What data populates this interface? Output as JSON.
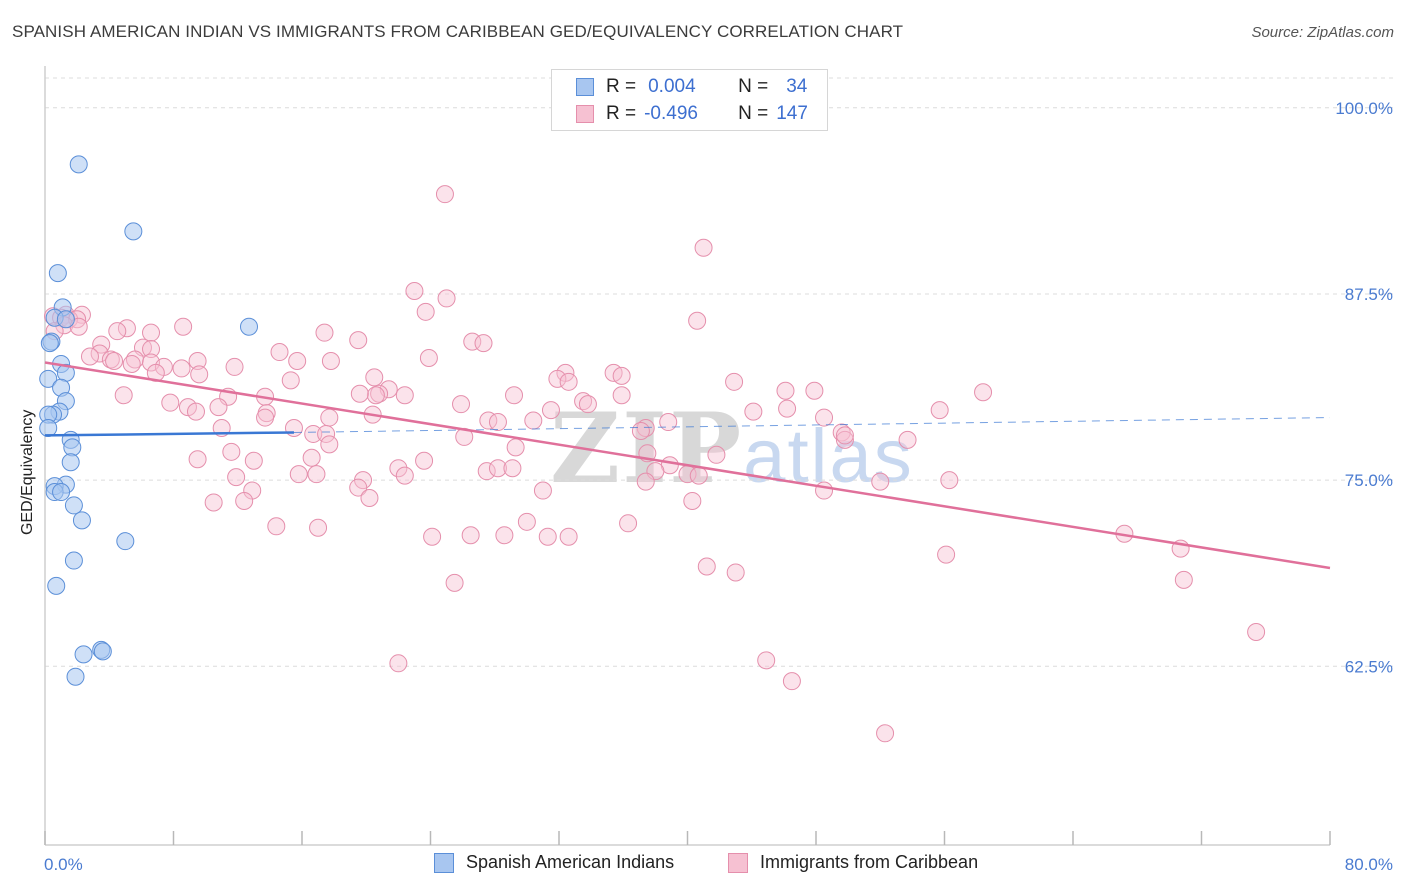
{
  "title": "SPANISH AMERICAN INDIAN VS IMMIGRANTS FROM CARIBBEAN GED/EQUIVALENCY CORRELATION CHART",
  "source": "Source: ZipAtlas.com",
  "watermark": {
    "part1": "ZIP",
    "part2": "atlas"
  },
  "legend": {
    "rows": [
      {
        "r_label": "R =",
        "r_value": "0.004",
        "n_label": "N =",
        "n_value": "34",
        "color": "#a8c6f0",
        "border": "#5b8fd8"
      },
      {
        "r_label": "R =",
        "r_value": "-0.496",
        "n_label": "N =",
        "n_value": "147",
        "color": "#f6c1d2",
        "border": "#e58fac"
      }
    ]
  },
  "bottom_legend": {
    "series1": "Spanish American Indians",
    "series2": "Immigrants from Caribbean"
  },
  "colors": {
    "blue_fill": "#a8c6f0",
    "blue_stroke": "#5b8fd8",
    "blue_line": "#3a78d4",
    "pink_fill": "#f6c1d2",
    "pink_stroke": "#e58fac",
    "pink_line": "#e0709a",
    "grid": "#dcdcdc",
    "axis_text": "#4a7bd0"
  },
  "chart_data": {
    "type": "scatter",
    "title": "SPANISH AMERICAN INDIAN VS IMMIGRANTS FROM CARIBBEAN GED/EQUIVALENCY CORRELATION CHART",
    "xlabel": "",
    "ylabel": "GED/Equivalency",
    "xlim": [
      0,
      80
    ],
    "ylim": [
      50.5,
      102
    ],
    "x_tick_labels": [
      "0.0%",
      "80.0%"
    ],
    "y_ticks": [
      100.0,
      87.5,
      75.0,
      62.5
    ],
    "y_tick_labels": [
      "100.0%",
      "87.5%",
      "75.0%",
      "62.5%"
    ],
    "grid": "horizontal dashed",
    "series": [
      {
        "name": "Spanish American Indians",
        "r": 0.004,
        "n": 34,
        "trend": {
          "x": [
            0,
            15.5,
            80
          ],
          "y": [
            78.0,
            78.2,
            79.2
          ],
          "solid_until": 15.5
        },
        "points": [
          [
            2.1,
            96.2
          ],
          [
            5.5,
            91.7
          ],
          [
            0.8,
            88.9
          ],
          [
            12.7,
            85.3
          ],
          [
            1.1,
            86.6
          ],
          [
            0.6,
            85.9
          ],
          [
            1.3,
            85.8
          ],
          [
            0.4,
            84.3
          ],
          [
            0.3,
            84.2
          ],
          [
            1.0,
            82.8
          ],
          [
            1.3,
            82.2
          ],
          [
            0.2,
            81.8
          ],
          [
            1.0,
            81.2
          ],
          [
            1.3,
            80.3
          ],
          [
            0.9,
            79.6
          ],
          [
            0.5,
            79.4
          ],
          [
            0.2,
            79.4
          ],
          [
            0.2,
            78.5
          ],
          [
            1.6,
            77.7
          ],
          [
            1.7,
            77.2
          ],
          [
            1.6,
            76.2
          ],
          [
            1.3,
            74.7
          ],
          [
            0.6,
            74.6
          ],
          [
            0.6,
            74.2
          ],
          [
            1.0,
            74.2
          ],
          [
            1.8,
            73.3
          ],
          [
            2.3,
            72.3
          ],
          [
            5.0,
            70.9
          ],
          [
            1.8,
            69.6
          ],
          [
            0.7,
            67.9
          ],
          [
            3.5,
            63.6
          ],
          [
            3.6,
            63.5
          ],
          [
            2.4,
            63.3
          ],
          [
            1.9,
            61.8
          ]
        ]
      },
      {
        "name": "Immigrants from Caribbean",
        "r": -0.496,
        "n": 147,
        "trend": {
          "x": [
            0,
            80
          ],
          "y": [
            82.9,
            69.1
          ]
        },
        "points": [
          [
            24.9,
            94.2
          ],
          [
            41.0,
            90.6
          ],
          [
            23.0,
            87.7
          ],
          [
            25.0,
            87.2
          ],
          [
            23.7,
            86.3
          ],
          [
            0.5,
            86.0
          ],
          [
            1.3,
            86.1
          ],
          [
            2.3,
            86.1
          ],
          [
            1.0,
            85.9
          ],
          [
            1.5,
            85.8
          ],
          [
            2.0,
            85.8
          ],
          [
            40.6,
            85.7
          ],
          [
            1.2,
            85.4
          ],
          [
            0.6,
            85.0
          ],
          [
            2.1,
            85.3
          ],
          [
            5.1,
            85.2
          ],
          [
            8.6,
            85.3
          ],
          [
            17.4,
            84.9
          ],
          [
            6.6,
            84.9
          ],
          [
            4.5,
            85.0
          ],
          [
            26.6,
            84.3
          ],
          [
            27.3,
            84.2
          ],
          [
            19.5,
            84.4
          ],
          [
            3.5,
            84.1
          ],
          [
            6.1,
            83.9
          ],
          [
            6.6,
            83.8
          ],
          [
            3.4,
            83.5
          ],
          [
            14.6,
            83.6
          ],
          [
            5.6,
            83.1
          ],
          [
            4.1,
            83.1
          ],
          [
            23.9,
            83.2
          ],
          [
            9.5,
            83.0
          ],
          [
            15.7,
            83.0
          ],
          [
            17.8,
            83.0
          ],
          [
            2.8,
            83.3
          ],
          [
            4.3,
            83.0
          ],
          [
            6.6,
            82.9
          ],
          [
            5.4,
            82.8
          ],
          [
            11.8,
            82.6
          ],
          [
            7.4,
            82.6
          ],
          [
            8.5,
            82.5
          ],
          [
            9.6,
            82.1
          ],
          [
            35.4,
            82.2
          ],
          [
            32.4,
            82.2
          ],
          [
            6.9,
            82.2
          ],
          [
            35.9,
            82.0
          ],
          [
            20.5,
            81.9
          ],
          [
            31.9,
            81.8
          ],
          [
            42.9,
            81.6
          ],
          [
            32.6,
            81.6
          ],
          [
            15.3,
            81.7
          ],
          [
            46.1,
            81.0
          ],
          [
            21.4,
            81.1
          ],
          [
            47.9,
            81.0
          ],
          [
            58.4,
            80.9
          ],
          [
            20.8,
            80.8
          ],
          [
            20.6,
            80.7
          ],
          [
            22.4,
            80.7
          ],
          [
            19.6,
            80.8
          ],
          [
            35.9,
            80.7
          ],
          [
            29.2,
            80.7
          ],
          [
            11.4,
            80.6
          ],
          [
            13.7,
            80.6
          ],
          [
            4.9,
            80.7
          ],
          [
            7.8,
            80.2
          ],
          [
            33.5,
            80.3
          ],
          [
            33.8,
            80.1
          ],
          [
            25.9,
            80.1
          ],
          [
            10.8,
            79.9
          ],
          [
            8.9,
            79.9
          ],
          [
            9.4,
            79.6
          ],
          [
            31.5,
            79.7
          ],
          [
            44.1,
            79.6
          ],
          [
            46.2,
            79.8
          ],
          [
            55.7,
            79.7
          ],
          [
            20.4,
            79.4
          ],
          [
            13.8,
            79.5
          ],
          [
            13.7,
            79.2
          ],
          [
            48.5,
            79.2
          ],
          [
            17.7,
            79.2
          ],
          [
            27.6,
            79.0
          ],
          [
            30.4,
            79.0
          ],
          [
            38.8,
            78.9
          ],
          [
            37.4,
            78.5
          ],
          [
            28.2,
            78.9
          ],
          [
            15.5,
            78.5
          ],
          [
            11.0,
            78.5
          ],
          [
            16.7,
            78.1
          ],
          [
            17.5,
            78.1
          ],
          [
            37.1,
            78.3
          ],
          [
            49.6,
            78.2
          ],
          [
            49.8,
            77.7
          ],
          [
            26.1,
            77.9
          ],
          [
            49.8,
            78.0
          ],
          [
            53.7,
            77.7
          ],
          [
            29.3,
            77.2
          ],
          [
            17.7,
            77.4
          ],
          [
            11.6,
            76.9
          ],
          [
            16.6,
            76.5
          ],
          [
            41.8,
            76.7
          ],
          [
            37.5,
            76.8
          ],
          [
            9.5,
            76.4
          ],
          [
            23.6,
            76.3
          ],
          [
            13.0,
            76.3
          ],
          [
            38.9,
            76.0
          ],
          [
            22.0,
            75.8
          ],
          [
            22.4,
            75.3
          ],
          [
            27.5,
            75.6
          ],
          [
            28.2,
            75.8
          ],
          [
            29.1,
            75.8
          ],
          [
            38.0,
            75.6
          ],
          [
            15.8,
            75.4
          ],
          [
            16.9,
            75.4
          ],
          [
            11.9,
            75.2
          ],
          [
            19.8,
            75.0
          ],
          [
            40.0,
            75.4
          ],
          [
            40.7,
            75.3
          ],
          [
            52.0,
            74.9
          ],
          [
            56.3,
            75.0
          ],
          [
            37.4,
            74.9
          ],
          [
            19.5,
            74.5
          ],
          [
            31.0,
            74.3
          ],
          [
            48.5,
            74.3
          ],
          [
            12.9,
            74.3
          ],
          [
            20.2,
            73.8
          ],
          [
            12.4,
            73.6
          ],
          [
            10.5,
            73.5
          ],
          [
            40.3,
            73.6
          ],
          [
            30.0,
            72.2
          ],
          [
            36.3,
            72.1
          ],
          [
            14.4,
            71.9
          ],
          [
            17.0,
            71.8
          ],
          [
            28.6,
            71.3
          ],
          [
            67.2,
            71.4
          ],
          [
            24.1,
            71.2
          ],
          [
            26.5,
            71.3
          ],
          [
            31.3,
            71.2
          ],
          [
            32.6,
            71.2
          ],
          [
            70.7,
            70.4
          ],
          [
            56.1,
            70.0
          ],
          [
            41.2,
            69.2
          ],
          [
            43.0,
            68.8
          ],
          [
            25.5,
            68.1
          ],
          [
            70.9,
            68.3
          ],
          [
            75.4,
            64.8
          ],
          [
            44.9,
            62.9
          ],
          [
            22.0,
            62.7
          ],
          [
            46.5,
            61.5
          ],
          [
            52.3,
            58.0
          ]
        ]
      }
    ]
  }
}
